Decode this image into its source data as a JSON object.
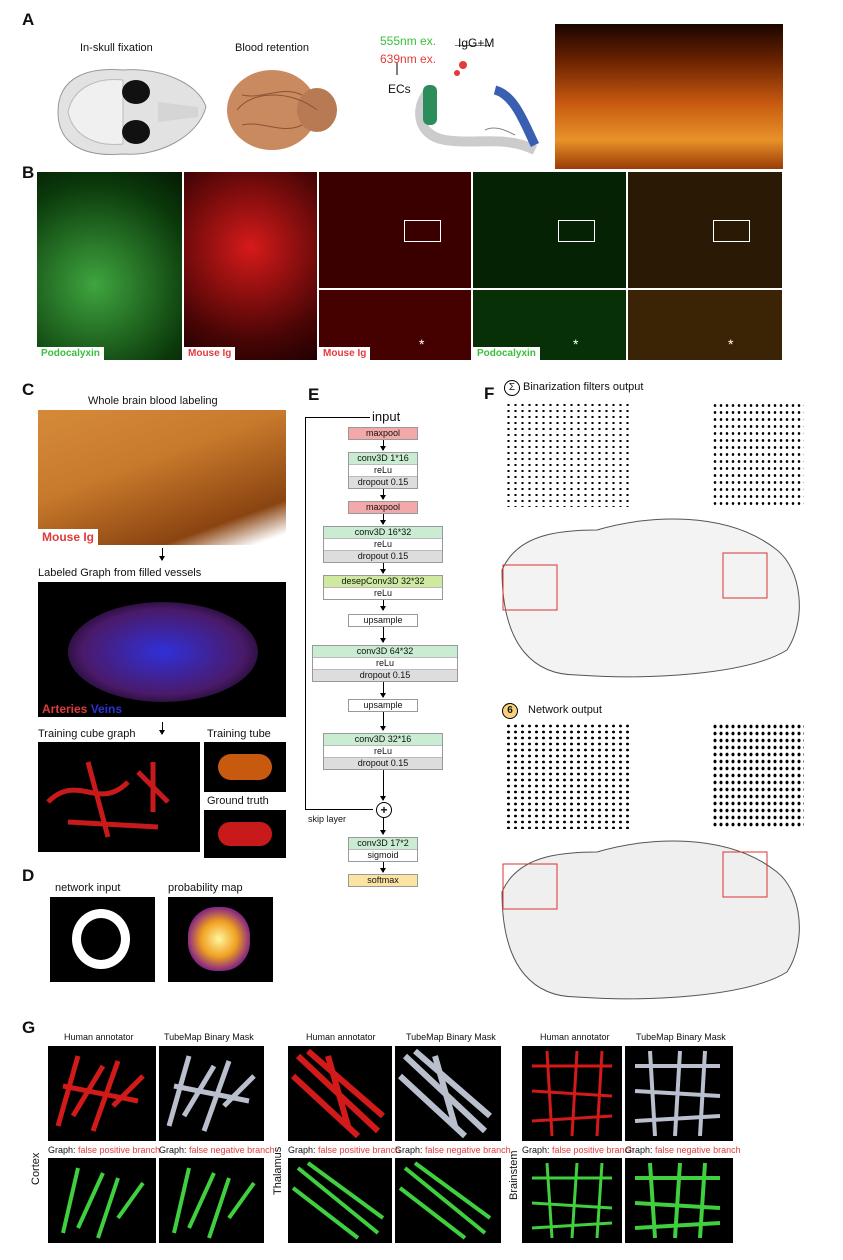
{
  "panels": {
    "a": "A",
    "b": "B",
    "c": "C",
    "d": "D",
    "e": "E",
    "f": "F",
    "g": "G"
  },
  "panel_a": {
    "fixation": "In-skull fixation",
    "retention": "Blood retention",
    "ex555": "555nm ex.",
    "ex639": "639nm ex.",
    "igg": "IgG+M",
    "ecs": "ECs"
  },
  "panel_b": {
    "podocalyxin": "Podocalyxin",
    "mouse_ig": "Mouse Ig",
    "mouse_ig2": "Mouse Ig",
    "podocalyxin2": "Podocalyxin",
    "asterisk": "*"
  },
  "panel_c": {
    "whole": "Whole brain blood labeling",
    "mouse_ig": "Mouse Ig",
    "graph": "Labeled Graph from filled vessels",
    "arteries": "Arteries",
    "veins": "Veins",
    "cube": "Training cube graph",
    "tube": "Training tube",
    "ground": "Ground truth"
  },
  "panel_d": {
    "input": "network input",
    "prob": "probability map"
  },
  "panel_e": {
    "input": "input",
    "skip": "skip layer",
    "plus": "+",
    "layers": [
      [
        "maxpool"
      ],
      [
        "conv3D 1*16",
        "reLu",
        "dropout 0.15"
      ],
      [
        "maxpool"
      ],
      [
        "conv3D 16*32",
        "reLu",
        "dropout 0.15"
      ],
      [
        "desepConv3D 32*32",
        "reLu"
      ],
      [
        "upsample"
      ],
      [
        "conv3D 64*32",
        "reLu",
        "dropout 0.15"
      ],
      [
        "upsample"
      ],
      [
        "conv3D 32*16",
        "reLu",
        "dropout 0.15"
      ],
      [
        "conv3D 17*2",
        "sigmoid"
      ],
      [
        "softmax"
      ]
    ]
  },
  "panel_f": {
    "sigma": "Σ",
    "bin": "Binarization filters output",
    "six": "6",
    "net": "Network output"
  },
  "panel_g": {
    "human": "Human annotator",
    "tube": "TubeMap Binary Mask",
    "graph": "Graph:",
    "fp": "false positive branch",
    "fn": "false negative branch",
    "cortex": "Cortex",
    "thalamus": "Thalamus",
    "brainstem": "Brainstem"
  },
  "colors": {
    "red": "#e23b3b",
    "green": "#3bbf3b",
    "blue": "#2b33d6"
  }
}
